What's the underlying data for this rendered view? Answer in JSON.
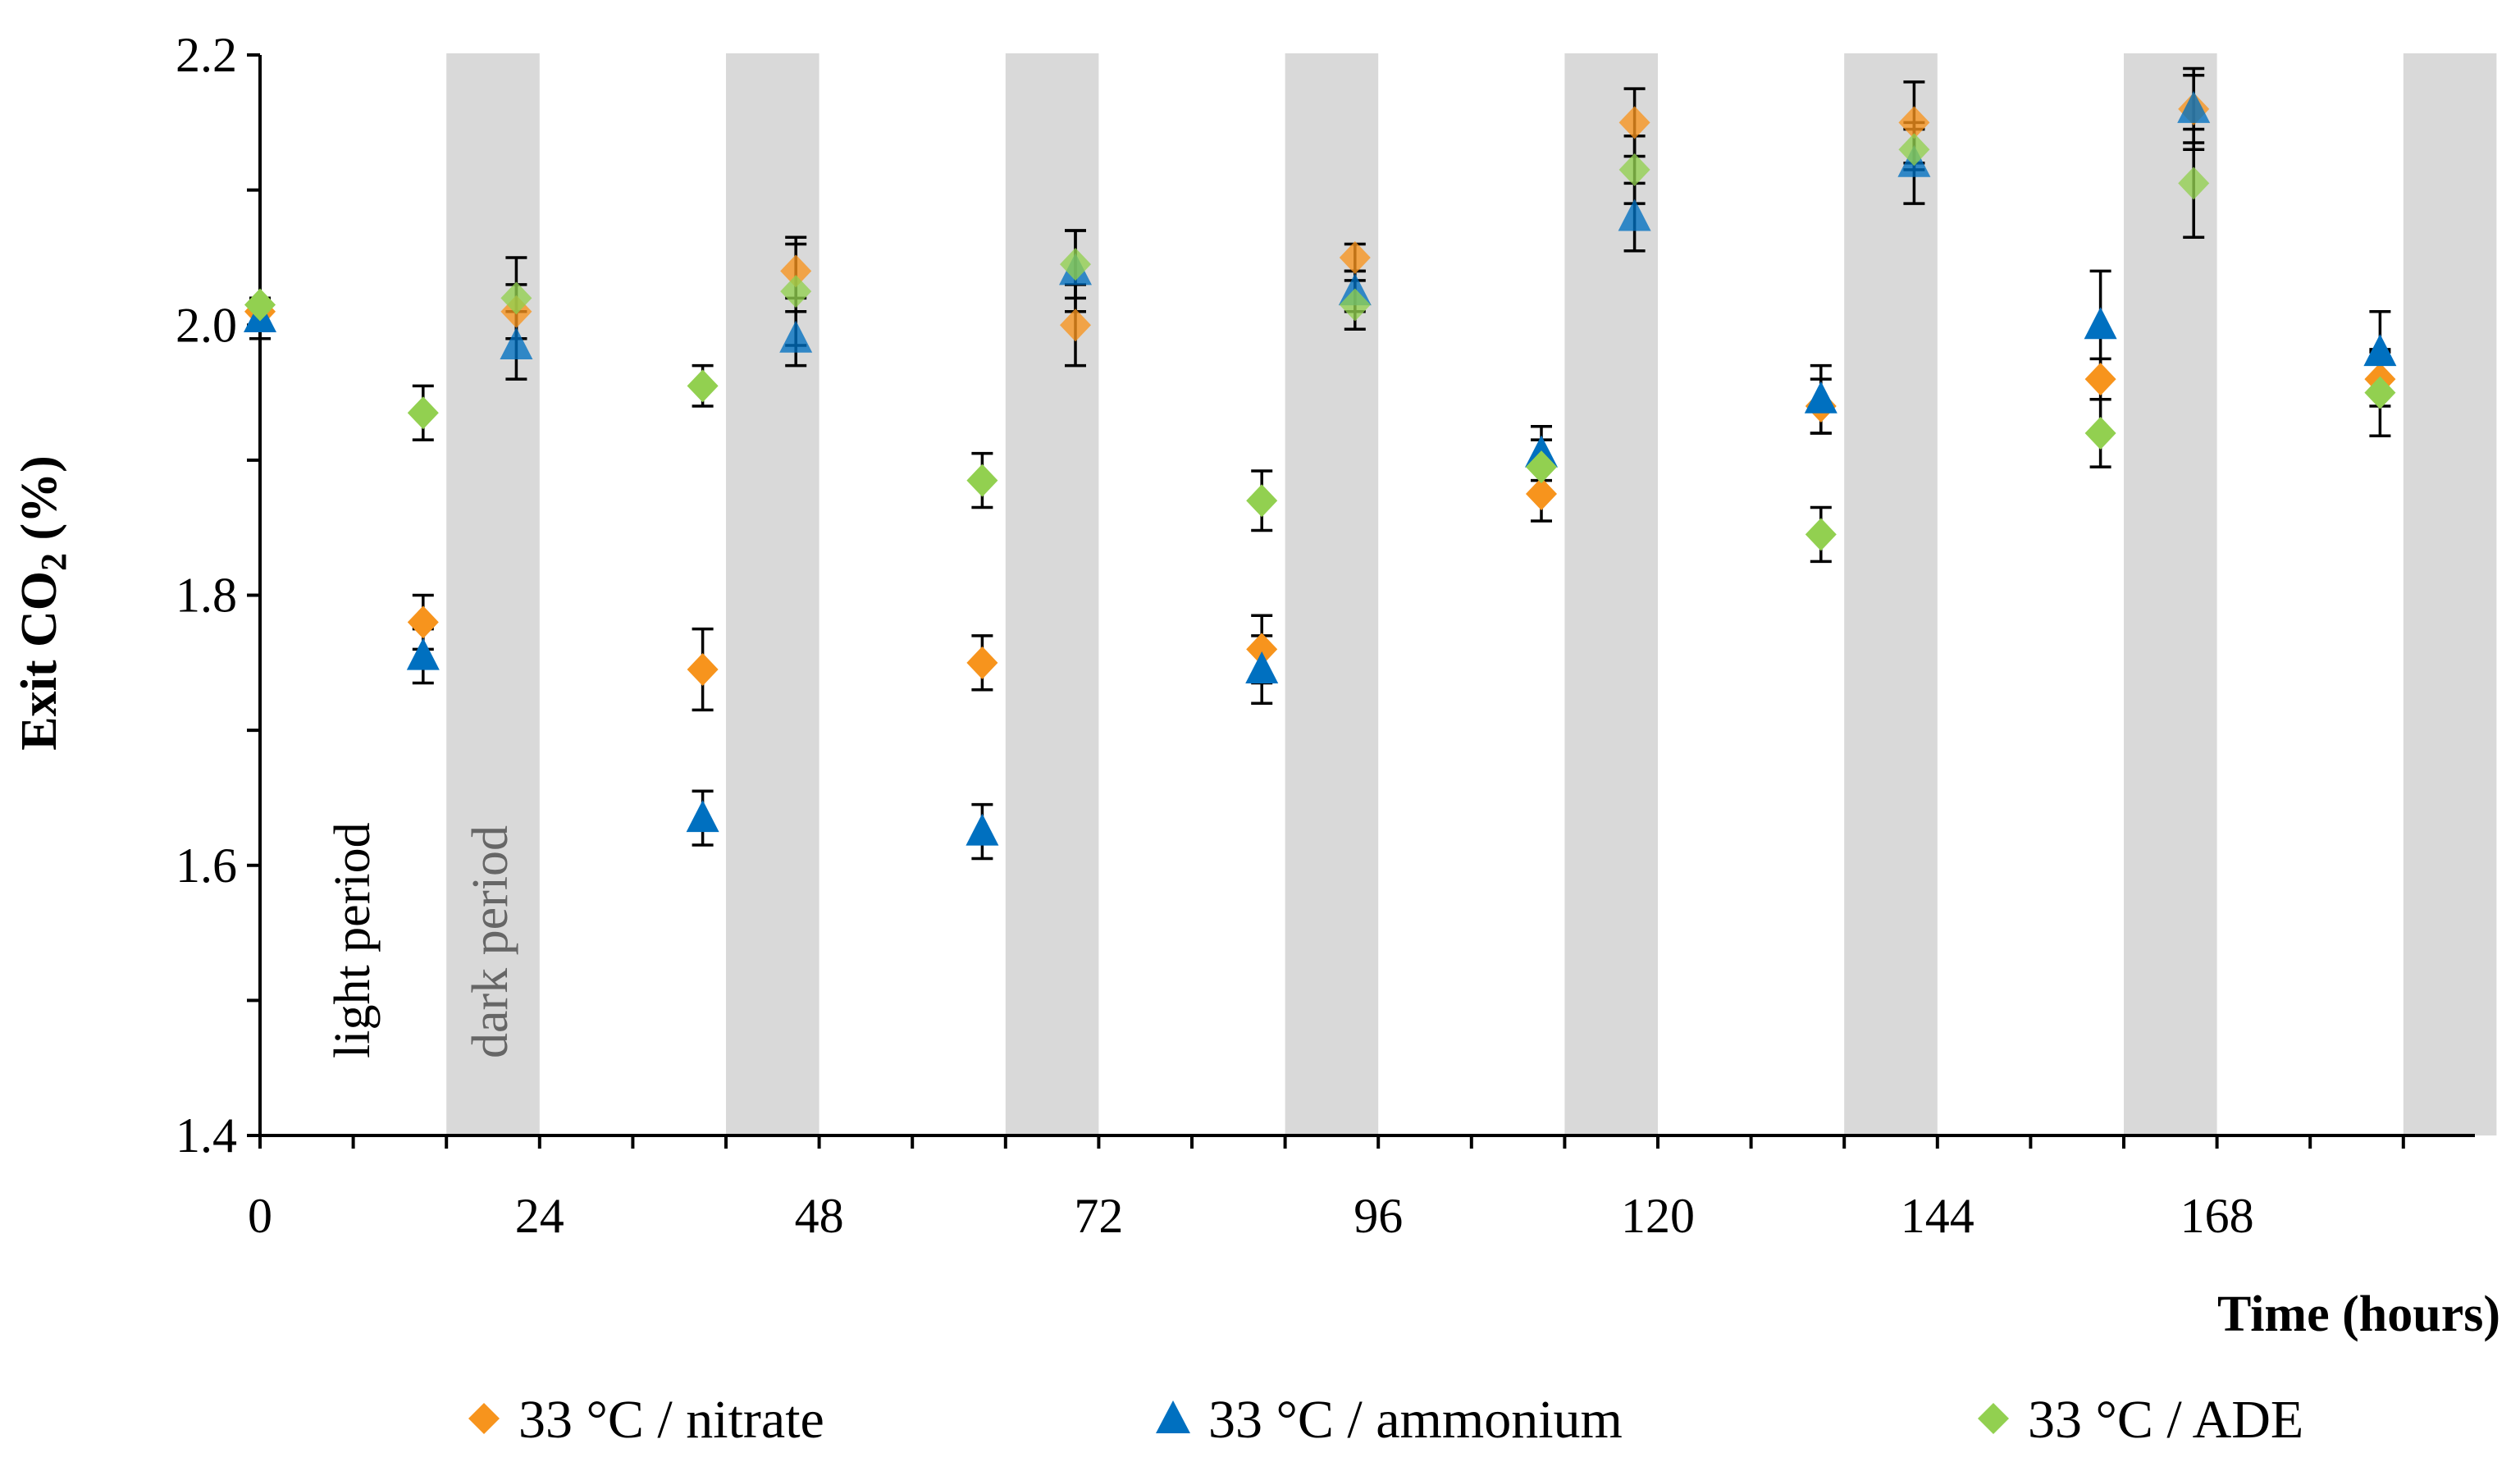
{
  "chart_data": {
    "type": "scatter",
    "title": "",
    "xlabel": "Time (hours)",
    "ylabel_parts": [
      "Exit CO",
      "2",
      " (%)"
    ],
    "xlim": [
      0,
      190
    ],
    "ylim": [
      1.4,
      2.2
    ],
    "xticks": [
      0,
      24,
      48,
      72,
      96,
      120,
      144,
      168
    ],
    "yticks": [
      "1.4",
      "1.6",
      "1.8",
      "2.0",
      "2.2"
    ],
    "minor_xtick_step": 8,
    "dark_periods": [
      [
        16,
        24
      ],
      [
        40,
        48
      ],
      [
        64,
        72
      ],
      [
        88,
        96
      ],
      [
        112,
        120
      ],
      [
        136,
        144
      ],
      [
        160,
        168
      ],
      [
        184,
        192
      ]
    ],
    "annotations": {
      "light": "light period",
      "dark": "dark period"
    },
    "error_bars": true,
    "legend_position": "bottom",
    "series": [
      {
        "name": "33 °C / nitrate",
        "marker": "diamond",
        "color": "#F7941D",
        "points": [
          {
            "x": 0,
            "y": 2.01,
            "err": 0.01
          },
          {
            "x": 14,
            "y": 1.78,
            "err": 0.02
          },
          {
            "x": 22,
            "y": 2.01,
            "err": 0.02
          },
          {
            "x": 38,
            "y": 1.745,
            "err": 0.03
          },
          {
            "x": 46,
            "y": 2.04,
            "err": 0.02
          },
          {
            "x": 62,
            "y": 1.75,
            "err": 0.02
          },
          {
            "x": 70,
            "y": 2.0,
            "err": 0.03
          },
          {
            "x": 86,
            "y": 1.76,
            "err": 0.025
          },
          {
            "x": 94,
            "y": 2.05,
            "err": 0.01
          },
          {
            "x": 110,
            "y": 1.875,
            "err": 0.02
          },
          {
            "x": 118,
            "y": 2.15,
            "err": 0.025
          },
          {
            "x": 134,
            "y": 1.94,
            "err": 0.02
          },
          {
            "x": 142,
            "y": 2.15,
            "err": 0.03
          },
          {
            "x": 158,
            "y": 1.96,
            "err": 0.015
          },
          {
            "x": 166,
            "y": 2.16,
            "err": 0.025
          },
          {
            "x": 182,
            "y": 1.96,
            "err": 0.02
          }
        ]
      },
      {
        "name": "33 °C / ammonium",
        "marker": "triangle",
        "color": "#0070C0",
        "points": [
          {
            "x": 0,
            "y": 2.005,
            "err": 0.015
          },
          {
            "x": 14,
            "y": 1.755,
            "err": 0.02
          },
          {
            "x": 22,
            "y": 1.985,
            "err": 0.025
          },
          {
            "x": 38,
            "y": 1.635,
            "err": 0.02
          },
          {
            "x": 46,
            "y": 1.99,
            "err": 0.02
          },
          {
            "x": 62,
            "y": 1.625,
            "err": 0.02
          },
          {
            "x": 70,
            "y": 2.04,
            "err": 0.03
          },
          {
            "x": 86,
            "y": 1.745,
            "err": 0.025
          },
          {
            "x": 94,
            "y": 2.025,
            "err": 0.015
          },
          {
            "x": 110,
            "y": 1.905,
            "err": 0.02
          },
          {
            "x": 118,
            "y": 2.08,
            "err": 0.025
          },
          {
            "x": 134,
            "y": 1.945,
            "err": 0.025
          },
          {
            "x": 142,
            "y": 2.12,
            "err": 0.03
          },
          {
            "x": 158,
            "y": 2.0,
            "err": 0.04
          },
          {
            "x": 166,
            "y": 2.16,
            "err": 0.03
          },
          {
            "x": 182,
            "y": 1.98,
            "err": 0.03
          }
        ]
      },
      {
        "name": "33 °C / ADE",
        "marker": "diamond",
        "color": "#92D050",
        "points": [
          {
            "x": 0,
            "y": 2.015,
            "err": 0.005
          },
          {
            "x": 14,
            "y": 1.935,
            "err": 0.02
          },
          {
            "x": 22,
            "y": 2.02,
            "err": 0.03
          },
          {
            "x": 38,
            "y": 1.955,
            "err": 0.015
          },
          {
            "x": 46,
            "y": 2.025,
            "err": 0.04
          },
          {
            "x": 62,
            "y": 1.885,
            "err": 0.02
          },
          {
            "x": 70,
            "y": 2.045,
            "err": 0.025
          },
          {
            "x": 86,
            "y": 1.87,
            "err": 0.022
          },
          {
            "x": 94,
            "y": 2.015,
            "err": 0.018
          },
          {
            "x": 110,
            "y": 1.895,
            "err": 0.02
          },
          {
            "x": 118,
            "y": 2.115,
            "err": 0.025
          },
          {
            "x": 134,
            "y": 1.845,
            "err": 0.02
          },
          {
            "x": 142,
            "y": 2.13,
            "err": 0.015
          },
          {
            "x": 158,
            "y": 1.92,
            "err": 0.025
          },
          {
            "x": 166,
            "y": 2.105,
            "err": 0.04
          },
          {
            "x": 182,
            "y": 1.95,
            "err": 0.032
          }
        ]
      }
    ]
  }
}
